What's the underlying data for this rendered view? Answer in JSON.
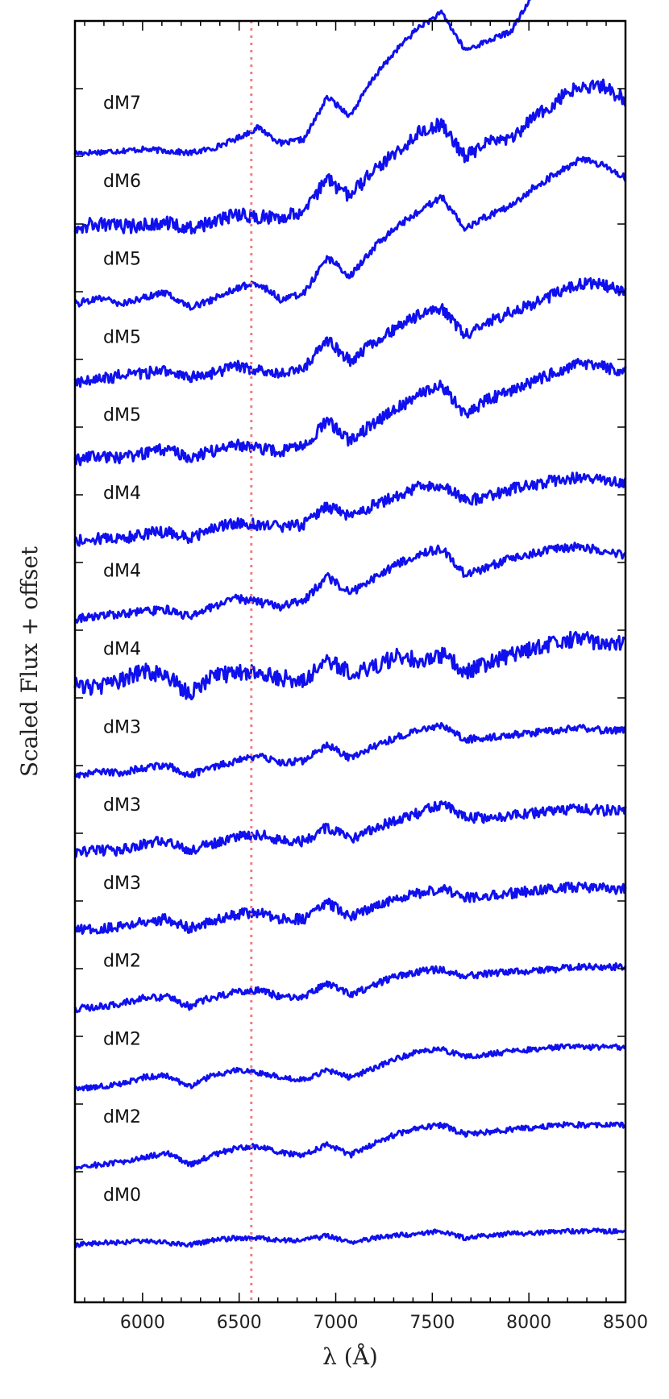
{
  "chart_data": {
    "type": "line",
    "xlabel": "λ (Å)",
    "ylabel": "Scaled Flux + offset",
    "xlim": [
      5650,
      8500
    ],
    "x_ticks": [
      "6000",
      "6500",
      "7000",
      "7500",
      "8000",
      "8500"
    ],
    "reference_line": {
      "x": 6563,
      "style": "dotted",
      "color": "#f08080"
    },
    "line_color": "#1010ee",
    "grid": false,
    "legend": "none",
    "series": [
      {
        "name": "dM7",
        "noise": 0.12,
        "y": [
          0.0,
          0.02,
          0.05,
          0.08,
          0.05,
          0.0,
          0.1,
          0.3,
          0.55,
          0.2,
          0.3,
          1.2,
          0.8,
          1.6,
          2.2,
          2.7,
          3.0,
          2.2,
          2.4,
          2.6,
          3.4,
          4.0,
          4.5,
          4.6,
          4.4
        ]
      },
      {
        "name": "dM6",
        "noise": 0.3,
        "y": [
          0.1,
          0.15,
          0.1,
          0.12,
          0.18,
          0.05,
          0.2,
          0.35,
          0.3,
          0.3,
          0.45,
          1.1,
          0.75,
          1.3,
          1.7,
          2.1,
          2.3,
          1.6,
          1.9,
          2.0,
          2.4,
          2.8,
          3.1,
          3.1,
          2.8
        ]
      },
      {
        "name": "dM5",
        "noise": 0.15,
        "y": [
          0.1,
          0.25,
          0.1,
          0.25,
          0.35,
          0.05,
          0.2,
          0.45,
          0.55,
          0.2,
          0.35,
          1.1,
          0.7,
          1.3,
          1.75,
          2.1,
          2.4,
          1.7,
          2.0,
          2.2,
          2.6,
          2.9,
          3.2,
          3.1,
          2.8
        ]
      },
      {
        "name": "dM5",
        "noise": 0.25,
        "y": [
          0.1,
          0.15,
          0.25,
          0.3,
          0.35,
          0.2,
          0.3,
          0.45,
          0.35,
          0.3,
          0.4,
          1.0,
          0.55,
          0.95,
          1.25,
          1.55,
          1.7,
          1.1,
          1.4,
          1.6,
          1.8,
          2.0,
          2.2,
          2.2,
          2.0
        ]
      },
      {
        "name": "dM5",
        "noise": 0.25,
        "y": [
          0.1,
          0.2,
          0.15,
          0.25,
          0.35,
          0.15,
          0.3,
          0.45,
          0.35,
          0.3,
          0.4,
          0.95,
          0.5,
          0.9,
          1.2,
          1.5,
          1.7,
          1.1,
          1.4,
          1.6,
          1.8,
          2.0,
          2.2,
          2.1,
          2.0
        ]
      },
      {
        "name": "dM4",
        "noise": 0.25,
        "y": [
          0.05,
          0.1,
          0.1,
          0.2,
          0.25,
          0.1,
          0.3,
          0.45,
          0.4,
          0.35,
          0.4,
          0.8,
          0.55,
          0.8,
          1.0,
          1.2,
          1.25,
          0.9,
          1.0,
          1.15,
          1.25,
          1.35,
          1.4,
          1.35,
          1.3
        ]
      },
      {
        "name": "dM4",
        "noise": 0.18,
        "y": [
          0.05,
          0.1,
          0.15,
          0.2,
          0.25,
          0.1,
          0.3,
          0.5,
          0.4,
          0.3,
          0.45,
          0.95,
          0.6,
          0.9,
          1.2,
          1.45,
          1.55,
          1.0,
          1.15,
          1.35,
          1.45,
          1.55,
          1.6,
          1.5,
          1.4
        ]
      },
      {
        "name": "dM4",
        "noise": 0.35,
        "y": [
          0.3,
          0.25,
          0.4,
          0.6,
          0.5,
          0.1,
          0.5,
          0.55,
          0.6,
          0.45,
          0.4,
          0.85,
          0.55,
          0.7,
          0.9,
          0.85,
          0.95,
          0.6,
          0.75,
          0.95,
          1.1,
          1.2,
          1.3,
          1.2,
          1.2
        ]
      },
      {
        "name": "dM3",
        "noise": 0.15,
        "y": [
          0.05,
          0.1,
          0.1,
          0.2,
          0.25,
          0.05,
          0.2,
          0.35,
          0.45,
          0.3,
          0.35,
          0.7,
          0.4,
          0.65,
          0.85,
          1.0,
          1.1,
          0.8,
          0.85,
          0.9,
          0.95,
          1.0,
          1.05,
          1.0,
          1.0
        ]
      },
      {
        "name": "dM3",
        "noise": 0.22,
        "y": [
          0.05,
          0.1,
          0.1,
          0.25,
          0.3,
          0.1,
          0.25,
          0.4,
          0.45,
          0.3,
          0.3,
          0.6,
          0.35,
          0.55,
          0.75,
          0.9,
          1.1,
          0.8,
          0.8,
          0.85,
          0.9,
          0.95,
          1.0,
          0.95,
          1.0
        ]
      },
      {
        "name": "dM3",
        "noise": 0.22,
        "y": [
          0.05,
          0.1,
          0.15,
          0.25,
          0.3,
          0.1,
          0.25,
          0.4,
          0.45,
          0.3,
          0.3,
          0.65,
          0.35,
          0.55,
          0.75,
          0.85,
          0.95,
          0.75,
          0.8,
          0.85,
          0.9,
          0.95,
          1.0,
          0.95,
          0.95
        ]
      },
      {
        "name": "dM2",
        "noise": 0.15,
        "y": [
          0.05,
          0.1,
          0.15,
          0.3,
          0.3,
          0.1,
          0.3,
          0.4,
          0.45,
          0.3,
          0.3,
          0.6,
          0.35,
          0.55,
          0.75,
          0.85,
          0.9,
          0.75,
          0.8,
          0.85,
          0.85,
          0.9,
          0.95,
          0.95,
          0.95
        ]
      },
      {
        "name": "dM2",
        "noise": 0.12,
        "y": [
          0.0,
          0.05,
          0.1,
          0.25,
          0.3,
          0.05,
          0.3,
          0.4,
          0.35,
          0.25,
          0.2,
          0.4,
          0.25,
          0.45,
          0.65,
          0.8,
          0.85,
          0.7,
          0.75,
          0.8,
          0.85,
          0.9,
          0.9,
          0.9,
          0.9
        ]
      },
      {
        "name": "dM2",
        "noise": 0.12,
        "y": [
          0.0,
          0.05,
          0.1,
          0.2,
          0.3,
          0.05,
          0.25,
          0.4,
          0.45,
          0.3,
          0.25,
          0.5,
          0.25,
          0.5,
          0.7,
          0.85,
          0.9,
          0.7,
          0.75,
          0.8,
          0.85,
          0.9,
          0.9,
          0.9,
          0.9
        ]
      },
      {
        "name": "dM0",
        "noise": 0.1,
        "y": [
          0.0,
          0.05,
          0.05,
          0.1,
          0.05,
          0.0,
          0.1,
          0.15,
          0.15,
          0.1,
          0.1,
          0.2,
          0.05,
          0.15,
          0.2,
          0.25,
          0.3,
          0.15,
          0.2,
          0.25,
          0.25,
          0.3,
          0.3,
          0.3,
          0.3
        ]
      }
    ]
  }
}
